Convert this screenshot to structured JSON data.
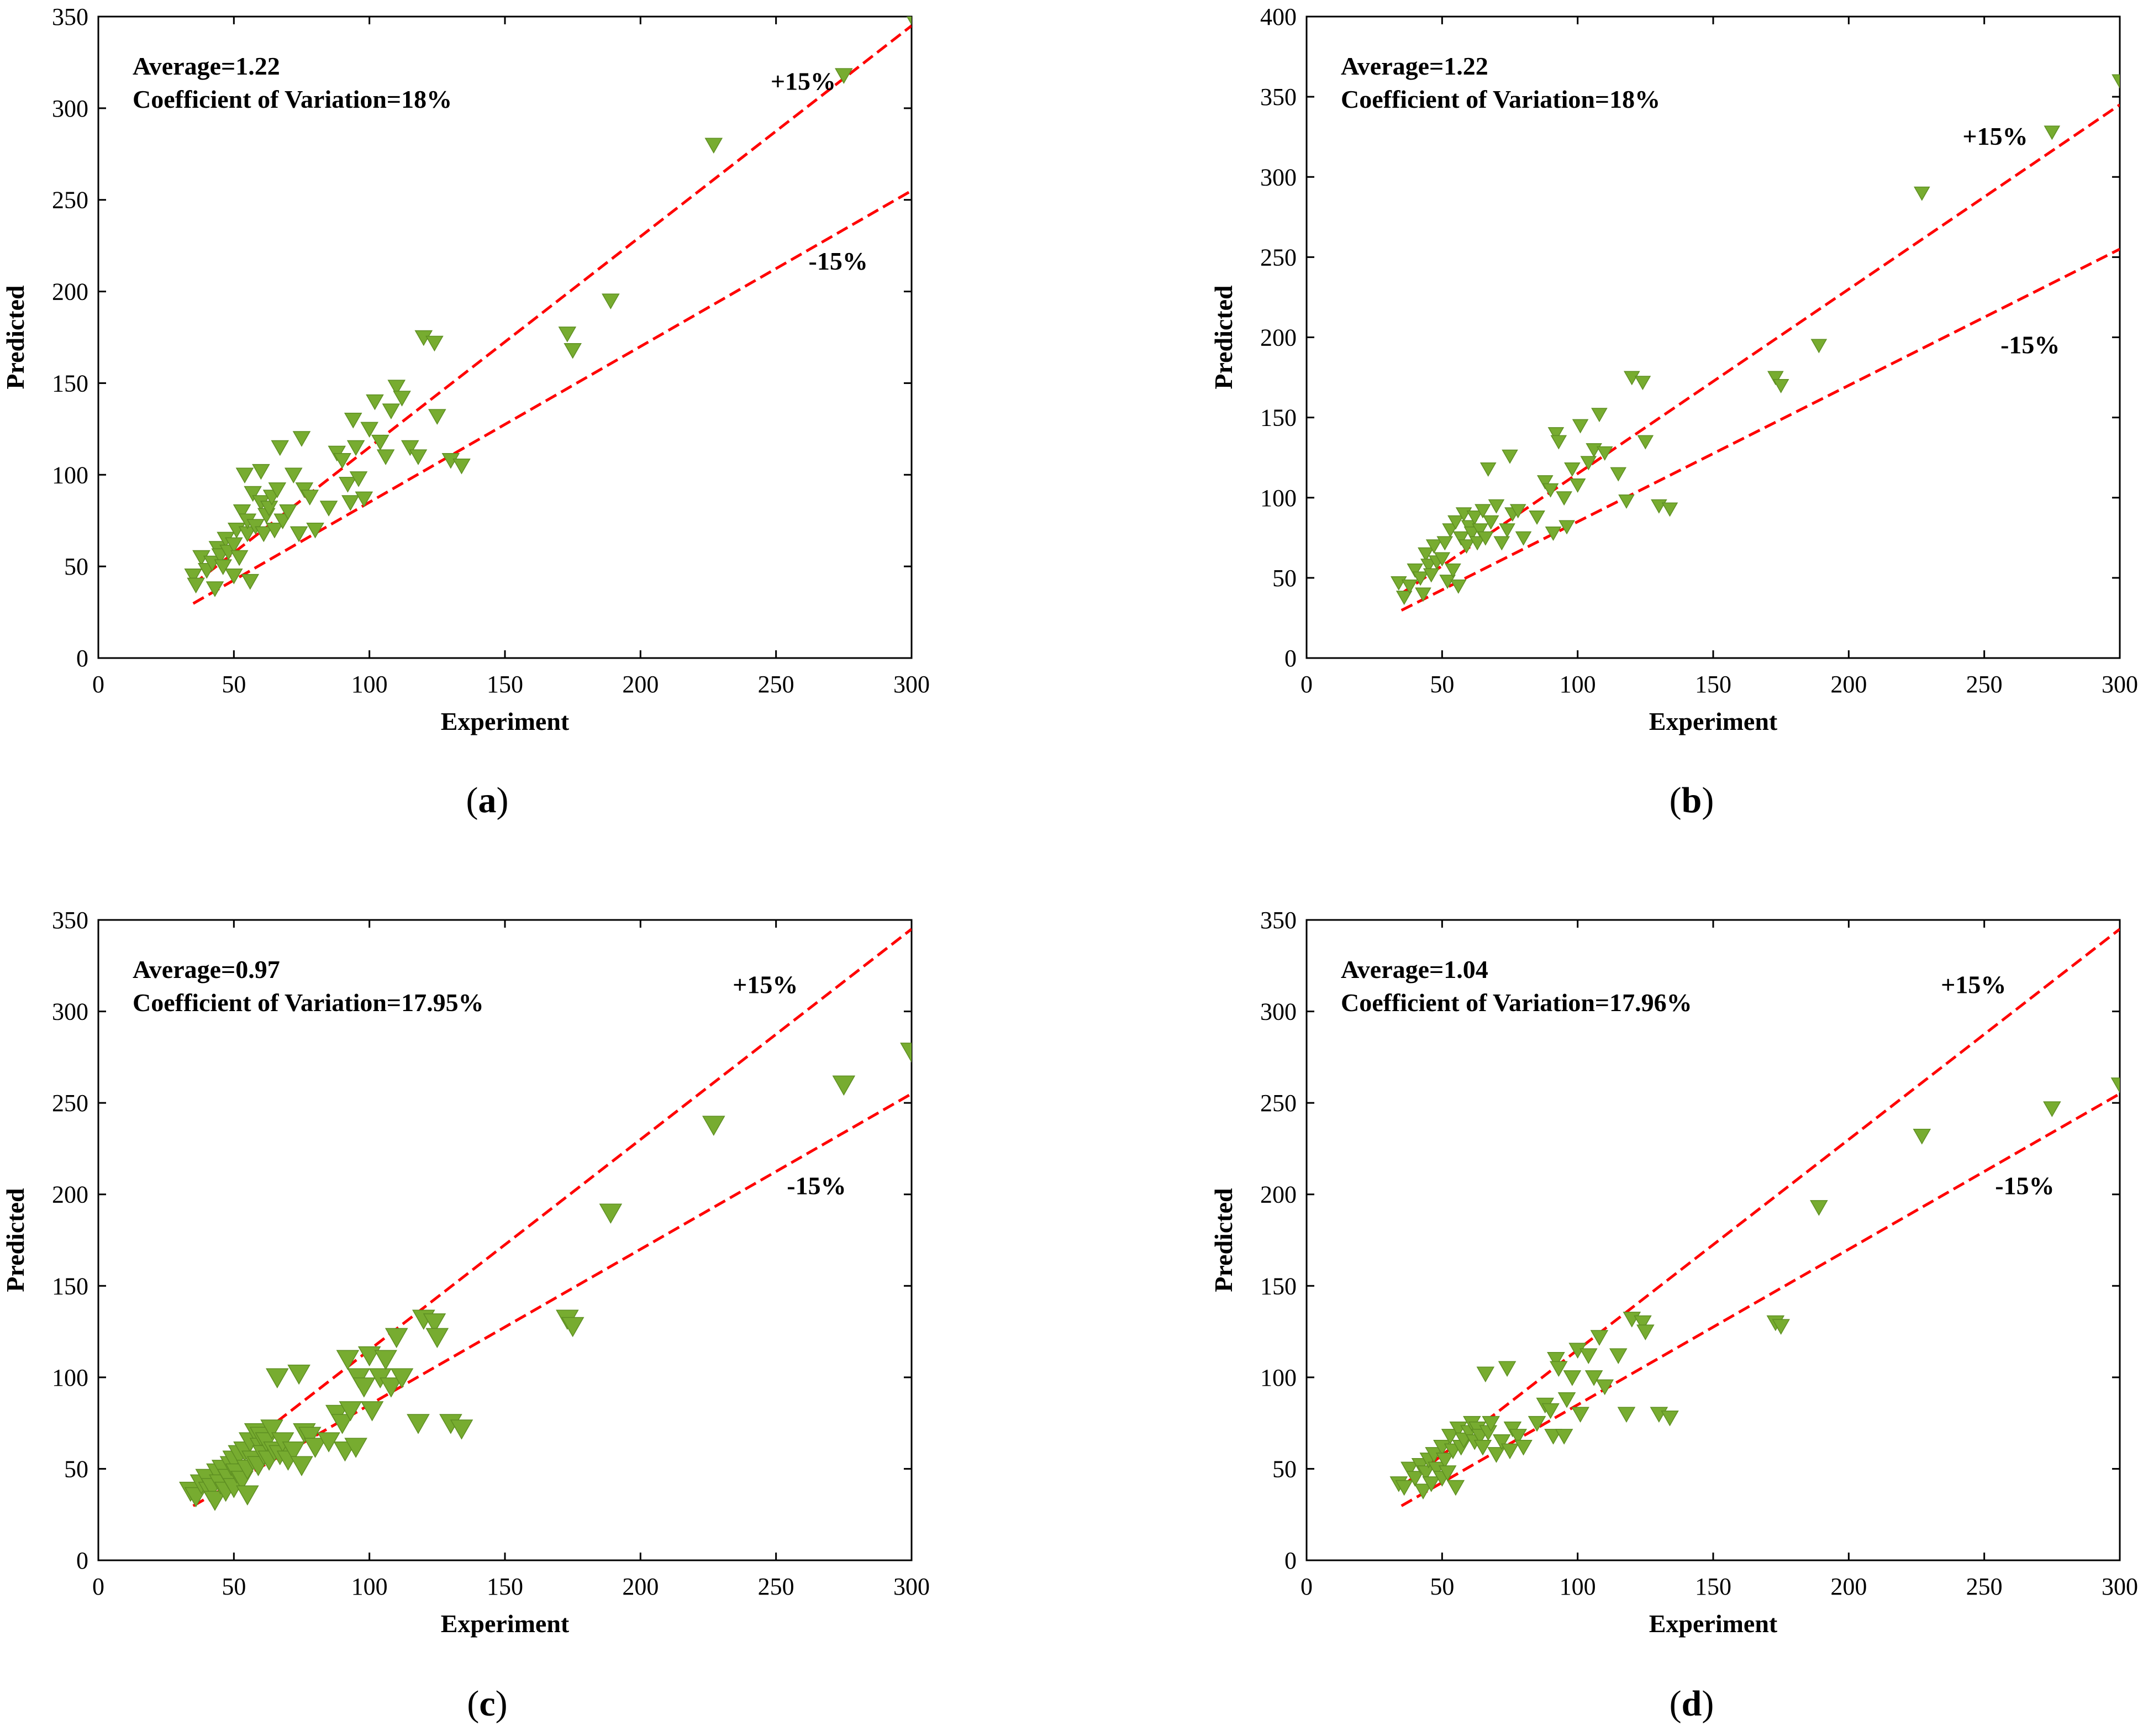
{
  "colors": {
    "marker": "#77AC30",
    "marker_stroke": "#5E8F22",
    "band_line": "#FF0000",
    "axis": "#000000",
    "background": "#FFFFFF"
  },
  "chart_data": [
    {
      "id": "a",
      "caption_letter": "a",
      "type": "scatter",
      "xlabel": "Experiment",
      "ylabel": "Predicted",
      "xlim": [
        0,
        300
      ],
      "ylim": [
        0,
        350
      ],
      "xticks": [
        0,
        50,
        100,
        150,
        200,
        250,
        300
      ],
      "yticks": [
        0,
        50,
        100,
        150,
        200,
        250,
        300,
        350
      ],
      "annotation_average": "Average=1.22",
      "annotation_cov": "Coefficient of Variation=18%",
      "band_upper_label": "+15%",
      "band_lower_label": "-15%",
      "band_upper_label_pos": [
        248,
        310
      ],
      "band_lower_label_pos": [
        262,
        212
      ],
      "band_x_range": [
        35,
        300
      ],
      "band_factors": [
        1.15,
        0.85
      ],
      "marker_size": 1.0,
      "points": [
        [
          35,
          45
        ],
        [
          36,
          40
        ],
        [
          38,
          55
        ],
        [
          40,
          48
        ],
        [
          42,
          52
        ],
        [
          43,
          38
        ],
        [
          44,
          60
        ],
        [
          45,
          56
        ],
        [
          46,
          50
        ],
        [
          47,
          65
        ],
        [
          48,
          58
        ],
        [
          50,
          62
        ],
        [
          50,
          45
        ],
        [
          51,
          70
        ],
        [
          52,
          55
        ],
        [
          53,
          80
        ],
        [
          54,
          100
        ],
        [
          55,
          68
        ],
        [
          55,
          75
        ],
        [
          56,
          42
        ],
        [
          57,
          90
        ],
        [
          58,
          72
        ],
        [
          60,
          102
        ],
        [
          60,
          85
        ],
        [
          61,
          68
        ],
        [
          62,
          78
        ],
        [
          63,
          82
        ],
        [
          64,
          88
        ],
        [
          65,
          70
        ],
        [
          66,
          92
        ],
        [
          67,
          115
        ],
        [
          68,
          75
        ],
        [
          70,
          80
        ],
        [
          72,
          100
        ],
        [
          74,
          68
        ],
        [
          75,
          120
        ],
        [
          76,
          92
        ],
        [
          78,
          88
        ],
        [
          80,
          70
        ],
        [
          85,
          82
        ],
        [
          88,
          112
        ],
        [
          90,
          108
        ],
        [
          92,
          95
        ],
        [
          93,
          85
        ],
        [
          94,
          130
        ],
        [
          95,
          115
        ],
        [
          96,
          98
        ],
        [
          98,
          87
        ],
        [
          100,
          125
        ],
        [
          102,
          140
        ],
        [
          104,
          118
        ],
        [
          106,
          110
        ],
        [
          108,
          135
        ],
        [
          110,
          148
        ],
        [
          112,
          142
        ],
        [
          115,
          115
        ],
        [
          118,
          110
        ],
        [
          120,
          175
        ],
        [
          124,
          172
        ],
        [
          125,
          132
        ],
        [
          130,
          108
        ],
        [
          134,
          105
        ],
        [
          173,
          177
        ],
        [
          175,
          168
        ],
        [
          189,
          195
        ],
        [
          227,
          280
        ],
        [
          275,
          318
        ],
        [
          300,
          350
        ]
      ]
    },
    {
      "id": "b",
      "caption_letter": "b",
      "type": "scatter",
      "xlabel": "Experiment",
      "ylabel": "Predicted",
      "xlim": [
        0,
        300
      ],
      "ylim": [
        0,
        400
      ],
      "xticks": [
        0,
        50,
        100,
        150,
        200,
        250,
        300
      ],
      "yticks": [
        0,
        50,
        100,
        150,
        200,
        250,
        300,
        350,
        400
      ],
      "annotation_average": "Average=1.22",
      "annotation_cov": "Coefficient of Variation=18%",
      "band_upper_label": "+15%",
      "band_lower_label": "-15%",
      "band_upper_label_pos": [
        242,
        320
      ],
      "band_lower_label_pos": [
        256,
        190
      ],
      "band_x_range": [
        35,
        300
      ],
      "band_factors": [
        1.15,
        0.85
      ],
      "marker_size": 0.9,
      "points": [
        [
          34,
          47
        ],
        [
          36,
          38
        ],
        [
          38,
          45
        ],
        [
          40,
          55
        ],
        [
          42,
          50
        ],
        [
          43,
          40
        ],
        [
          44,
          65
        ],
        [
          45,
          58
        ],
        [
          46,
          52
        ],
        [
          47,
          70
        ],
        [
          48,
          60
        ],
        [
          50,
          62
        ],
        [
          51,
          72
        ],
        [
          52,
          48
        ],
        [
          53,
          80
        ],
        [
          54,
          55
        ],
        [
          55,
          85
        ],
        [
          56,
          45
        ],
        [
          57,
          75
        ],
        [
          58,
          90
        ],
        [
          59,
          70
        ],
        [
          60,
          82
        ],
        [
          61,
          78
        ],
        [
          62,
          88
        ],
        [
          63,
          72
        ],
        [
          64,
          80
        ],
        [
          65,
          92
        ],
        [
          66,
          75
        ],
        [
          67,
          118
        ],
        [
          68,
          85
        ],
        [
          70,
          95
        ],
        [
          72,
          72
        ],
        [
          74,
          80
        ],
        [
          75,
          126
        ],
        [
          76,
          90
        ],
        [
          78,
          92
        ],
        [
          80,
          75
        ],
        [
          85,
          88
        ],
        [
          88,
          110
        ],
        [
          90,
          105
        ],
        [
          91,
          78
        ],
        [
          92,
          140
        ],
        [
          93,
          135
        ],
        [
          95,
          100
        ],
        [
          96,
          82
        ],
        [
          98,
          118
        ],
        [
          100,
          108
        ],
        [
          101,
          145
        ],
        [
          104,
          122
        ],
        [
          106,
          130
        ],
        [
          108,
          152
        ],
        [
          110,
          128
        ],
        [
          115,
          115
        ],
        [
          118,
          98
        ],
        [
          120,
          175
        ],
        [
          124,
          172
        ],
        [
          125,
          135
        ],
        [
          130,
          95
        ],
        [
          134,
          93
        ],
        [
          173,
          175
        ],
        [
          175,
          170
        ],
        [
          189,
          195
        ],
        [
          227,
          290
        ],
        [
          275,
          328
        ],
        [
          300,
          360
        ]
      ]
    },
    {
      "id": "c",
      "caption_letter": "c",
      "type": "scatter",
      "xlabel": "Experiment",
      "ylabel": "Predicted",
      "xlim": [
        0,
        300
      ],
      "ylim": [
        0,
        350
      ],
      "xticks": [
        0,
        50,
        100,
        150,
        200,
        250,
        300
      ],
      "yticks": [
        0,
        50,
        100,
        150,
        200,
        250,
        300,
        350
      ],
      "annotation_average": "Average=0.97",
      "annotation_cov": "Coefficient of Variation=17.95%",
      "band_upper_label": "+15%",
      "band_lower_label": "-15%",
      "band_upper_label_pos": [
        234,
        310
      ],
      "band_lower_label_pos": [
        254,
        200
      ],
      "band_x_range": [
        35,
        300
      ],
      "band_factors": [
        1.15,
        0.85
      ],
      "marker_size": 1.3,
      "points": [
        [
          34,
          38
        ],
        [
          36,
          35
        ],
        [
          38,
          42
        ],
        [
          40,
          45
        ],
        [
          41,
          38
        ],
        [
          42,
          40
        ],
        [
          43,
          33
        ],
        [
          44,
          48
        ],
        [
          45,
          42
        ],
        [
          46,
          50
        ],
        [
          47,
          38
        ],
        [
          48,
          45
        ],
        [
          49,
          52
        ],
        [
          50,
          40
        ],
        [
          50,
          55
        ],
        [
          51,
          48
        ],
        [
          52,
          58
        ],
        [
          53,
          44
        ],
        [
          54,
          60
        ],
        [
          55,
          50
        ],
        [
          55,
          36
        ],
        [
          56,
          65
        ],
        [
          57,
          55
        ],
        [
          58,
          70
        ],
        [
          59,
          52
        ],
        [
          60,
          62
        ],
        [
          60,
          68
        ],
        [
          61,
          58
        ],
        [
          62,
          65
        ],
        [
          63,
          55
        ],
        [
          64,
          72
        ],
        [
          65,
          60
        ],
        [
          66,
          100
        ],
        [
          67,
          58
        ],
        [
          68,
          65
        ],
        [
          70,
          55
        ],
        [
          72,
          60
        ],
        [
          74,
          102
        ],
        [
          75,
          52
        ],
        [
          76,
          70
        ],
        [
          78,
          68
        ],
        [
          80,
          62
        ],
        [
          85,
          65
        ],
        [
          88,
          80
        ],
        [
          90,
          75
        ],
        [
          91,
          60
        ],
        [
          92,
          110
        ],
        [
          93,
          82
        ],
        [
          95,
          62
        ],
        [
          96,
          100
        ],
        [
          98,
          95
        ],
        [
          100,
          112
        ],
        [
          101,
          82
        ],
        [
          104,
          100
        ],
        [
          106,
          110
        ],
        [
          108,
          95
        ],
        [
          110,
          122
        ],
        [
          112,
          100
        ],
        [
          118,
          75
        ],
        [
          120,
          132
        ],
        [
          124,
          130
        ],
        [
          125,
          122
        ],
        [
          130,
          75
        ],
        [
          134,
          72
        ],
        [
          173,
          132
        ],
        [
          175,
          128
        ],
        [
          189,
          190
        ],
        [
          227,
          238
        ],
        [
          275,
          260
        ],
        [
          300,
          278
        ]
      ]
    },
    {
      "id": "d",
      "caption_letter": "d",
      "type": "scatter",
      "xlabel": "Experiment",
      "ylabel": "Predicted",
      "xlim": [
        0,
        300
      ],
      "ylim": [
        0,
        350
      ],
      "xticks": [
        0,
        50,
        100,
        150,
        200,
        250,
        300
      ],
      "yticks": [
        0,
        50,
        100,
        150,
        200,
        250,
        300,
        350
      ],
      "annotation_average": "Average=1.04",
      "annotation_cov": "Coefficient of Variation=17.96%",
      "band_upper_label": "+15%",
      "band_lower_label": "-15%",
      "band_upper_label_pos": [
        234,
        310
      ],
      "band_lower_label_pos": [
        254,
        200
      ],
      "band_x_range": [
        35,
        300
      ],
      "band_factors": [
        1.15,
        0.85
      ],
      "marker_size": 1.0,
      "points": [
        [
          34,
          42
        ],
        [
          36,
          40
        ],
        [
          38,
          50
        ],
        [
          40,
          45
        ],
        [
          42,
          52
        ],
        [
          43,
          38
        ],
        [
          44,
          48
        ],
        [
          45,
          55
        ],
        [
          46,
          42
        ],
        [
          47,
          58
        ],
        [
          48,
          50
        ],
        [
          50,
          62
        ],
        [
          50,
          45
        ],
        [
          51,
          55
        ],
        [
          52,
          48
        ],
        [
          53,
          68
        ],
        [
          54,
          60
        ],
        [
          55,
          40
        ],
        [
          56,
          72
        ],
        [
          57,
          62
        ],
        [
          58,
          66
        ],
        [
          60,
          70
        ],
        [
          61,
          75
        ],
        [
          62,
          65
        ],
        [
          63,
          72
        ],
        [
          64,
          68
        ],
        [
          65,
          62
        ],
        [
          66,
          102
        ],
        [
          67,
          70
        ],
        [
          68,
          75
        ],
        [
          70,
          58
        ],
        [
          72,
          65
        ],
        [
          74,
          105
        ],
        [
          75,
          60
        ],
        [
          76,
          72
        ],
        [
          78,
          68
        ],
        [
          80,
          62
        ],
        [
          85,
          75
        ],
        [
          88,
          85
        ],
        [
          90,
          82
        ],
        [
          91,
          68
        ],
        [
          92,
          110
        ],
        [
          93,
          105
        ],
        [
          95,
          68
        ],
        [
          96,
          88
        ],
        [
          98,
          100
        ],
        [
          100,
          115
        ],
        [
          101,
          80
        ],
        [
          104,
          112
        ],
        [
          106,
          100
        ],
        [
          108,
          122
        ],
        [
          110,
          95
        ],
        [
          115,
          112
        ],
        [
          118,
          80
        ],
        [
          120,
          132
        ],
        [
          124,
          130
        ],
        [
          125,
          125
        ],
        [
          130,
          80
        ],
        [
          134,
          78
        ],
        [
          173,
          130
        ],
        [
          175,
          128
        ],
        [
          189,
          193
        ],
        [
          227,
          232
        ],
        [
          275,
          247
        ],
        [
          300,
          260
        ]
      ]
    }
  ]
}
